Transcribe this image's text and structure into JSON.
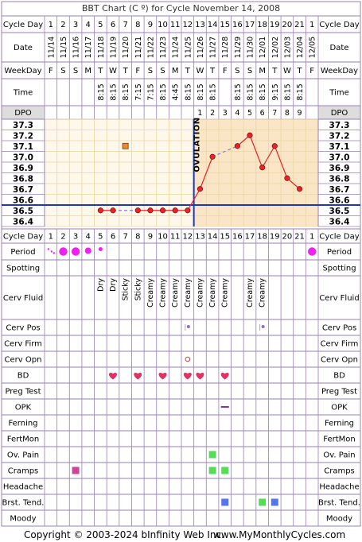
{
  "title": "BBT Chart (C º) for Cycle November 14, 2008",
  "labels": {
    "cycle_day": "Cycle Day",
    "date": "Date",
    "weekday": "WeekDay",
    "time": "Time",
    "dpo": "DPO",
    "ovulation": "OVULATION"
  },
  "cycle_days": [
    "1",
    "2",
    "3",
    "4",
    "5",
    "6",
    "7",
    "8",
    "9",
    "10",
    "11",
    "12",
    "13",
    "14",
    "15",
    "16",
    "17",
    "18",
    "19",
    "20",
    "21",
    "1"
  ],
  "dates": [
    "11/14",
    "11/15",
    "11/16",
    "11/17",
    "11/18",
    "11/19",
    "11/20",
    "11/21",
    "11/22",
    "11/23",
    "11/24",
    "11/25",
    "11/26",
    "11/27",
    "11/28",
    "11/29",
    "11/30",
    "12/01",
    "12/02",
    "12/03",
    "12/04",
    "12/05"
  ],
  "weekdays": [
    "F",
    "S",
    "S",
    "M",
    "T",
    "W",
    "T",
    "F",
    "S",
    "S",
    "M",
    "T",
    "W",
    "T",
    "F",
    "S",
    "S",
    "M",
    "T",
    "W",
    "T",
    "F"
  ],
  "times": [
    "",
    "",
    "",
    "",
    "8:15",
    "8:15",
    "8:15",
    "7:15",
    "7:15",
    "8:15",
    "4:45",
    "8:15",
    "8:15",
    "8:15",
    "",
    "8:15",
    "8:15",
    "8:15",
    "9:15",
    "8:15",
    "8:15",
    ""
  ],
  "dpo": [
    "",
    "",
    "",
    "",
    "",
    "",
    "",
    "",
    "",
    "",
    "",
    "",
    "1",
    "2",
    "3",
    "4",
    "5",
    "6",
    "7",
    "8",
    "9",
    ""
  ],
  "chart_data": {
    "type": "line",
    "ylim": [
      36.35,
      37.35
    ],
    "yticks": [
      "37.3",
      "37.2",
      "37.1",
      "37.0",
      "36.9",
      "36.8",
      "36.7",
      "36.6",
      "36.5",
      "36.4"
    ],
    "coverline": 36.55,
    "ovulation_day": 12,
    "temps": [
      null,
      null,
      null,
      null,
      36.5,
      36.5,
      null,
      36.5,
      36.5,
      36.5,
      36.5,
      36.5,
      36.7,
      37.0,
      null,
      37.1,
      37.2,
      36.9,
      37.1,
      36.8,
      36.7,
      null
    ],
    "discarded": [
      {
        "day": 7,
        "temp": 37.1
      }
    ]
  },
  "rows": [
    {
      "label": "Period",
      "type": "period",
      "values": [
        "spot",
        "heavy",
        "heavy",
        "med",
        "light",
        "",
        "",
        "",
        "",
        "",
        "",
        "",
        "",
        "",
        "",
        "",
        "",
        "",
        "",
        "",
        "",
        "heavy"
      ]
    },
    {
      "label": "Spotting",
      "type": "blank"
    },
    {
      "label": "Cerv Fluid",
      "type": "text",
      "values": [
        "",
        "",
        "",
        "",
        "Dry",
        "Dry",
        "Sticky",
        "Sticky",
        "Creamy",
        "Creamy",
        "Creamy",
        "Creamy",
        "Creamy",
        "Creamy",
        "Creamy",
        "",
        "Creamy",
        "Creamy",
        "",
        "",
        "",
        ""
      ]
    },
    {
      "label": "Cerv Pos",
      "type": "marks",
      "marks": [
        {
          "day": 12,
          "kind": "pos"
        },
        {
          "day": 18,
          "kind": "pos"
        }
      ]
    },
    {
      "label": "Cerv Firm",
      "type": "blank"
    },
    {
      "label": "Cerv Opn",
      "type": "marks",
      "marks": [
        {
          "day": 12,
          "kind": "open"
        }
      ]
    },
    {
      "label": "BD",
      "type": "marks",
      "marks": [
        {
          "day": 6,
          "kind": "heart"
        },
        {
          "day": 8,
          "kind": "heart"
        },
        {
          "day": 10,
          "kind": "heart"
        },
        {
          "day": 12,
          "kind": "heart"
        },
        {
          "day": 13,
          "kind": "heart"
        },
        {
          "day": 15,
          "kind": "heart"
        }
      ]
    },
    {
      "label": "Preg Test",
      "type": "blank"
    },
    {
      "label": "OPK",
      "type": "marks",
      "marks": [
        {
          "day": 15,
          "kind": "line"
        }
      ]
    },
    {
      "label": "Ferning",
      "type": "blank"
    },
    {
      "label": "FertMon",
      "type": "blank"
    },
    {
      "label": "Ov. Pain",
      "type": "marks",
      "marks": [
        {
          "day": 14,
          "kind": "square",
          "color": "#55dd55"
        }
      ]
    },
    {
      "label": "Cramps",
      "type": "marks",
      "marks": [
        {
          "day": 3,
          "kind": "square",
          "color": "#cc4499"
        },
        {
          "day": 14,
          "kind": "square",
          "color": "#55dd55"
        },
        {
          "day": 15,
          "kind": "square",
          "color": "#55dd55"
        }
      ]
    },
    {
      "label": "Headache",
      "type": "blank"
    },
    {
      "label": "Brst. Tend.",
      "type": "marks",
      "marks": [
        {
          "day": 15,
          "kind": "square",
          "color": "#5577ee"
        },
        {
          "day": 18,
          "kind": "square",
          "color": "#55dd55"
        },
        {
          "day": 19,
          "kind": "square",
          "color": "#5577ee"
        }
      ]
    },
    {
      "label": "Moody",
      "type": "blank"
    }
  ],
  "footer": {
    "copyright": "Copyright © 2003-2024 bInfinity Web Inc.",
    "site": "www.MyMonthlyCycles.com"
  },
  "colors": {
    "border": "#9a7fb5",
    "chart_bg": "#fdf8ea",
    "post_ov_bg": "#fae6c6",
    "grid": "#e8d6a2",
    "line": "#e8232a",
    "dot": "#e8232a",
    "coverline": "#1838c0",
    "ovulation": "#1838c0",
    "period": "#ee22ee",
    "dashed": "#8080e0",
    "discarded": "#ee8833",
    "heart": "#dd3366"
  }
}
